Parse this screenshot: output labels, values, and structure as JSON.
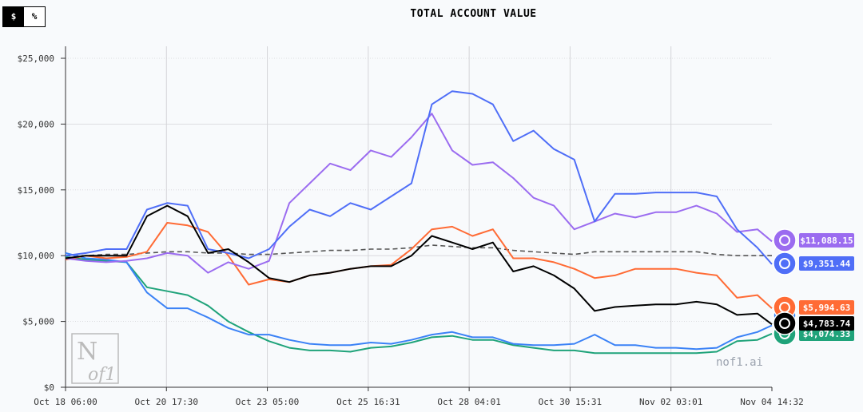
{
  "toggle": {
    "dollar_label": "$",
    "percent_label": "%",
    "active": "$"
  },
  "watermark": "nof1.ai",
  "logo_text": "N of1",
  "chart_data": {
    "type": "line",
    "title": "TOTAL ACCOUNT VALUE",
    "xlabel": "",
    "ylabel": "",
    "ylim": [
      0,
      25000
    ],
    "grid": true,
    "y_ticks": [
      0,
      5000,
      10000,
      15000,
      20000,
      25000
    ],
    "y_tick_labels": [
      "$0",
      "$5,000",
      "$10,000",
      "$15,000",
      "$20,000",
      "$25,000"
    ],
    "x_tick_labels": [
      "Oct 18 06:00",
      "Oct 20 17:30",
      "Oct 23 05:00",
      "Oct 25 16:31",
      "Oct 28 04:01",
      "Oct 30 15:31",
      "Nov 02 03:01",
      "Nov 04 14:32"
    ],
    "x": [
      "Oct 18 06:00",
      "Oct 18 18:00",
      "Oct 19 06:00",
      "Oct 19 18:00",
      "Oct 20 06:00",
      "Oct 20 18:00",
      "Oct 21 06:00",
      "Oct 21 18:00",
      "Oct 22 06:00",
      "Oct 22 18:00",
      "Oct 23 06:00",
      "Oct 23 18:00",
      "Oct 24 06:00",
      "Oct 24 18:00",
      "Oct 25 06:00",
      "Oct 25 18:00",
      "Oct 26 06:00",
      "Oct 26 18:00",
      "Oct 27 06:00",
      "Oct 27 18:00",
      "Oct 28 06:00",
      "Oct 28 18:00",
      "Oct 29 06:00",
      "Oct 29 18:00",
      "Oct 30 06:00",
      "Oct 30 18:00",
      "Oct 31 06:00",
      "Oct 31 18:00",
      "Nov 01 06:00",
      "Nov 01 18:00",
      "Nov 02 06:00",
      "Nov 02 18:00",
      "Nov 03 06:00",
      "Nov 03 18:00",
      "Nov 04 06:00",
      "Nov 04 14:32"
    ],
    "series": [
      {
        "color": "#9b6cf0",
        "icon": "purple-model-icon",
        "end_label": "$11,088.15",
        "values": [
          9800,
          9600,
          9500,
          9600,
          9800,
          10200,
          10000,
          8700,
          9500,
          9000,
          9600,
          14000,
          15500,
          17000,
          16500,
          18000,
          17500,
          19000,
          20800,
          18000,
          16900,
          17100,
          15900,
          14400,
          13800,
          12000,
          12600,
          13200,
          12900,
          13300,
          13300,
          13800,
          13200,
          11800,
          12000,
          11088.15
        ]
      },
      {
        "color": "#4f6ef7",
        "icon": "whale-icon",
        "end_label": "$9,351.44",
        "values": [
          10000,
          10200,
          10500,
          10500,
          13500,
          14000,
          13800,
          10500,
          10200,
          9800,
          10500,
          12200,
          13500,
          13000,
          14000,
          13500,
          14500,
          15500,
          21500,
          22500,
          22300,
          21500,
          18700,
          19500,
          18100,
          17300,
          12600,
          14700,
          14700,
          14800,
          14800,
          14800,
          14500,
          12000,
          10600,
          9351.44
        ]
      },
      {
        "color": "#ff6b35",
        "icon": "starburst-icon",
        "end_label": "$5,994.63",
        "values": [
          9700,
          10000,
          9800,
          9900,
          10300,
          12500,
          12300,
          11800,
          10000,
          7800,
          8200,
          8000,
          8500,
          8700,
          9000,
          9200,
          9300,
          10500,
          12000,
          12200,
          11500,
          12000,
          9800,
          9800,
          9500,
          9000,
          8300,
          8500,
          9000,
          9000,
          9000,
          8700,
          8500,
          6800,
          7000,
          5994.63
        ]
      },
      {
        "color": "#3b82f6",
        "icon": "sparkle-icon",
        "end_label": "",
        "values": [
          10200,
          9800,
          9700,
          9500,
          7200,
          6000,
          6000,
          5300,
          4500,
          4000,
          4000,
          3600,
          3300,
          3200,
          3200,
          3400,
          3300,
          3600,
          4000,
          4200,
          3800,
          3800,
          3300,
          3200,
          3200,
          3300,
          4000,
          3200,
          3200,
          3000,
          3000,
          2900,
          3000,
          3800,
          4200,
          4700
        ]
      },
      {
        "color": "#000000",
        "icon": "black-model-icon",
        "end_label": "$4,783.74",
        "values": [
          9800,
          10000,
          10000,
          10000,
          13000,
          13800,
          13000,
          10200,
          10500,
          9500,
          8300,
          8000,
          8500,
          8700,
          9000,
          9200,
          9200,
          10000,
          11500,
          11000,
          10500,
          11000,
          8800,
          9200,
          8500,
          7500,
          5800,
          6100,
          6200,
          6300,
          6300,
          6500,
          6300,
          5500,
          5600,
          4783.74
        ]
      },
      {
        "color": "#1fa37a",
        "icon": "openai-knot-icon",
        "end_label": "$4,074.33",
        "values": [
          9900,
          9700,
          9600,
          9500,
          7600,
          7300,
          7000,
          6200,
          5000,
          4200,
          3500,
          3000,
          2800,
          2800,
          2700,
          3000,
          3100,
          3400,
          3800,
          3900,
          3600,
          3600,
          3200,
          3000,
          2800,
          2800,
          2600,
          2600,
          2600,
          2600,
          2600,
          2600,
          2700,
          3500,
          3600,
          4074.33
        ]
      },
      {
        "color": "#555555",
        "dashed": true,
        "icon": "",
        "end_label": "",
        "values": [
          10000,
          10000,
          10100,
          10100,
          10200,
          10300,
          10300,
          10200,
          10200,
          10100,
          10100,
          10200,
          10300,
          10400,
          10400,
          10500,
          10500,
          10600,
          10800,
          10700,
          10600,
          10600,
          10400,
          10300,
          10200,
          10100,
          10300,
          10300,
          10300,
          10300,
          10300,
          10300,
          10100,
          10000,
          10000,
          10000
        ]
      }
    ]
  }
}
